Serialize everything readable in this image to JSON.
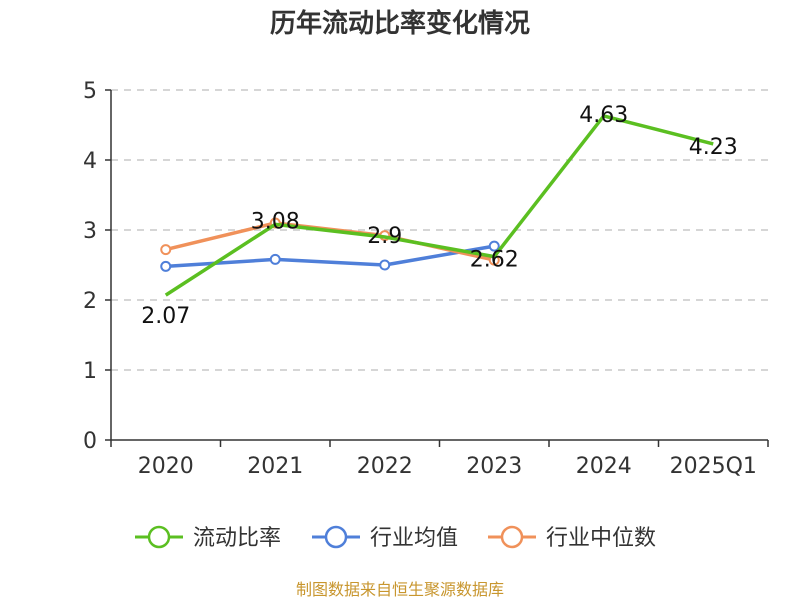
{
  "chart_data": {
    "type": "line",
    "title": "历年流动比率变化情况",
    "xlabel": "",
    "ylabel": "",
    "categories": [
      "2020",
      "2021",
      "2022",
      "2023",
      "2024",
      "2025Q1"
    ],
    "ylim": [
      0,
      5
    ],
    "yticks": [
      0,
      1,
      2,
      3,
      4,
      5
    ],
    "grid": true,
    "legend_position": "bottom",
    "series": [
      {
        "name": "流动比率",
        "color": "#5bbf21",
        "values": [
          2.07,
          3.08,
          2.9,
          2.62,
          4.63,
          4.23
        ],
        "labels": [
          "2.07",
          "3.08",
          "2.9",
          "2.62",
          "4.63",
          "4.23"
        ]
      },
      {
        "name": "行业均值",
        "color": "#4f7fd9",
        "values": [
          2.48,
          2.58,
          2.5,
          2.77,
          null,
          null
        ]
      },
      {
        "name": "行业中位数",
        "color": "#f0915a",
        "values": [
          2.72,
          3.1,
          2.92,
          2.57,
          null,
          null
        ]
      }
    ]
  },
  "footer": {
    "source": "制图数据来自恒生聚源数据库"
  }
}
